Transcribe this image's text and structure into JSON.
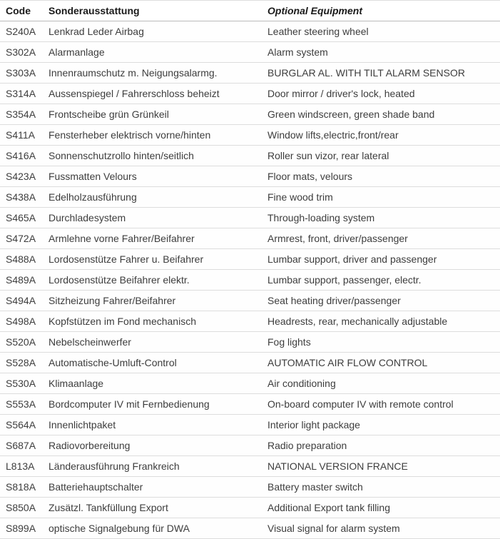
{
  "table": {
    "columns": [
      {
        "key": "code",
        "label": "Code"
      },
      {
        "key": "german",
        "label": "Sonderausstattung"
      },
      {
        "key": "english",
        "label": "Optional Equipment"
      }
    ],
    "rows": [
      {
        "code": "S240A",
        "german": "Lenkrad Leder Airbag",
        "english": "Leather steering wheel"
      },
      {
        "code": "S302A",
        "german": "Alarmanlage",
        "english": "Alarm system"
      },
      {
        "code": "S303A",
        "german": "Innenraumschutz m. Neigungsalarmg.",
        "english": "BURGLAR AL. WITH TILT ALARM SENSOR"
      },
      {
        "code": "S314A",
        "german": "Aussenspiegel / Fahrerschloss beheizt",
        "english": "Door mirror / driver's lock, heated"
      },
      {
        "code": "S354A",
        "german": "Frontscheibe grün Grünkeil",
        "english": "Green windscreen, green shade band"
      },
      {
        "code": "S411A",
        "german": "Fensterheber elektrisch vorne/hinten",
        "english": "Window lifts,electric,front/rear"
      },
      {
        "code": "S416A",
        "german": "Sonnenschutzrollo hinten/seitlich",
        "english": "Roller sun vizor, rear lateral"
      },
      {
        "code": "S423A",
        "german": "Fussmatten Velours",
        "english": "Floor mats, velours"
      },
      {
        "code": "S438A",
        "german": "Edelholzausführung",
        "english": "Fine wood trim"
      },
      {
        "code": "S465A",
        "german": "Durchladesystem",
        "english": "Through-loading system"
      },
      {
        "code": "S472A",
        "german": "Armlehne vorne Fahrer/Beifahrer",
        "english": "Armrest, front, driver/passenger"
      },
      {
        "code": "S488A",
        "german": "Lordosenstütze Fahrer u. Beifahrer",
        "english": "Lumbar support, driver and passenger"
      },
      {
        "code": "S489A",
        "german": "Lordosenstütze Beifahrer elektr.",
        "english": "Lumbar support, passenger, electr."
      },
      {
        "code": "S494A",
        "german": "Sitzheizung Fahrer/Beifahrer",
        "english": "Seat heating driver/passenger"
      },
      {
        "code": "S498A",
        "german": "Kopfstützen im Fond mechanisch",
        "english": "Headrests, rear, mechanically adjustable"
      },
      {
        "code": "S520A",
        "german": "Nebelscheinwerfer",
        "english": "Fog lights"
      },
      {
        "code": "S528A",
        "german": "Automatische-Umluft-Control",
        "english": "AUTOMATIC AIR FLOW CONTROL"
      },
      {
        "code": "S530A",
        "german": "Klimaanlage",
        "english": "Air conditioning"
      },
      {
        "code": "S553A",
        "german": "Bordcomputer IV mit Fernbedienung",
        "english": "On-board computer IV with remote control"
      },
      {
        "code": "S564A",
        "german": "Innenlichtpaket",
        "english": "Interior light package"
      },
      {
        "code": "S687A",
        "german": "Radiovorbereitung",
        "english": "Radio preparation"
      },
      {
        "code": "L813A",
        "german": "Länderausführung Frankreich",
        "english": "NATIONAL VERSION FRANCE"
      },
      {
        "code": "S818A",
        "german": "Batteriehauptschalter",
        "english": "Battery master switch"
      },
      {
        "code": "S850A",
        "german": "Zusätzl. Tankfüllung Export",
        "english": "Additional Export tank filling"
      },
      {
        "code": "S899A",
        "german": "optische Signalgebung für DWA",
        "english": "Visual signal for alarm system"
      }
    ]
  },
  "colors": {
    "header_text": "#1a1a1a",
    "body_text": "#3d3d3d",
    "row_separator": "#dddddd",
    "header_separator": "#bbbbbb",
    "background": "#ffffff"
  }
}
